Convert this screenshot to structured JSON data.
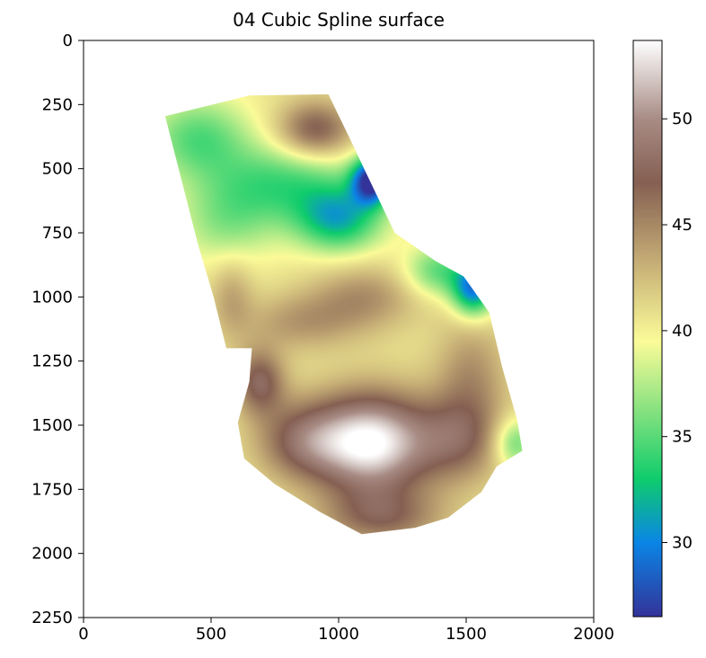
{
  "chart_data": {
    "type": "heatmap",
    "title": "04 Cubic Spline surface",
    "xlabel": "",
    "ylabel": "",
    "xlim": [
      0,
      2000
    ],
    "ylim": [
      2250,
      0
    ],
    "y_axis_inverted": true,
    "x_ticks": [
      0,
      500,
      1000,
      1500,
      2000
    ],
    "y_ticks": [
      0,
      250,
      500,
      750,
      1000,
      1250,
      1500,
      1750,
      2000,
      2250
    ],
    "grid": false,
    "colormap": "terrain",
    "colorbar": {
      "range": [
        26.5,
        53.7
      ],
      "ticks": [
        30,
        35,
        40,
        45,
        50
      ],
      "stops": [
        {
          "v": 26.5,
          "color": "#333399"
        },
        {
          "v": 30.0,
          "color": "#0a85e6"
        },
        {
          "v": 33.0,
          "color": "#0fcc6c"
        },
        {
          "v": 36.0,
          "color": "#7ee07e"
        },
        {
          "v": 39.5,
          "color": "#fbfb98"
        },
        {
          "v": 43.0,
          "color": "#c9b278"
        },
        {
          "v": 47.0,
          "color": "#855f52"
        },
        {
          "v": 50.0,
          "color": "#a88c85"
        },
        {
          "v": 53.7,
          "color": "#ffffff"
        }
      ]
    },
    "surface_mask_polygon": [
      [
        320,
        295
      ],
      [
        650,
        215
      ],
      [
        960,
        210
      ],
      [
        1050,
        395
      ],
      [
        1100,
        500
      ],
      [
        1220,
        750
      ],
      [
        1380,
        860
      ],
      [
        1490,
        920
      ],
      [
        1590,
        1060
      ],
      [
        1640,
        1270
      ],
      [
        1700,
        1480
      ],
      [
        1720,
        1600
      ],
      [
        1620,
        1660
      ],
      [
        1560,
        1760
      ],
      [
        1430,
        1860
      ],
      [
        1300,
        1900
      ],
      [
        1090,
        1925
      ],
      [
        930,
        1840
      ],
      [
        750,
        1730
      ],
      [
        630,
        1630
      ],
      [
        605,
        1490
      ],
      [
        650,
        1330
      ],
      [
        660,
        1200
      ],
      [
        560,
        1200
      ],
      [
        510,
        1000
      ],
      [
        450,
        800
      ]
    ],
    "surface_base_value": 40.5,
    "surface_features": [
      {
        "x": 1130,
        "y": 1570,
        "value": 53.5,
        "sx": 155,
        "sy": 140
      },
      {
        "x": 860,
        "y": 1560,
        "value": 47.0,
        "sx": 130,
        "sy": 110
      },
      {
        "x": 1460,
        "y": 1560,
        "value": 46.0,
        "sx": 130,
        "sy": 120
      },
      {
        "x": 1170,
        "y": 1860,
        "value": 46.0,
        "sx": 170,
        "sy": 80
      },
      {
        "x": 690,
        "y": 1330,
        "value": 47.5,
        "sx": 70,
        "sy": 90
      },
      {
        "x": 910,
        "y": 350,
        "value": 47.5,
        "sx": 105,
        "sy": 80
      },
      {
        "x": 1520,
        "y": 1310,
        "value": 44.5,
        "sx": 100,
        "sy": 170
      },
      {
        "x": 1690,
        "y": 1570,
        "value": 35.0,
        "sx": 60,
        "sy": 70
      },
      {
        "x": 780,
        "y": 560,
        "value": 34.5,
        "sx": 210,
        "sy": 110
      },
      {
        "x": 450,
        "y": 380,
        "value": 35.0,
        "sx": 140,
        "sy": 110
      },
      {
        "x": 1000,
        "y": 700,
        "value": 32.5,
        "sx": 120,
        "sy": 90
      },
      {
        "x": 560,
        "y": 720,
        "value": 37.0,
        "sx": 130,
        "sy": 110
      },
      {
        "x": 1130,
        "y": 545,
        "value": 27.0,
        "sx": 55,
        "sy": 65
      },
      {
        "x": 1530,
        "y": 970,
        "value": 29.5,
        "sx": 60,
        "sy": 75
      },
      {
        "x": 1390,
        "y": 900,
        "value": 35.0,
        "sx": 90,
        "sy": 70
      },
      {
        "x": 1100,
        "y": 1000,
        "value": 44.5,
        "sx": 150,
        "sy": 90
      },
      {
        "x": 850,
        "y": 1100,
        "value": 44.0,
        "sx": 160,
        "sy": 80
      },
      {
        "x": 580,
        "y": 1000,
        "value": 43.5,
        "sx": 60,
        "sy": 110
      }
    ]
  }
}
